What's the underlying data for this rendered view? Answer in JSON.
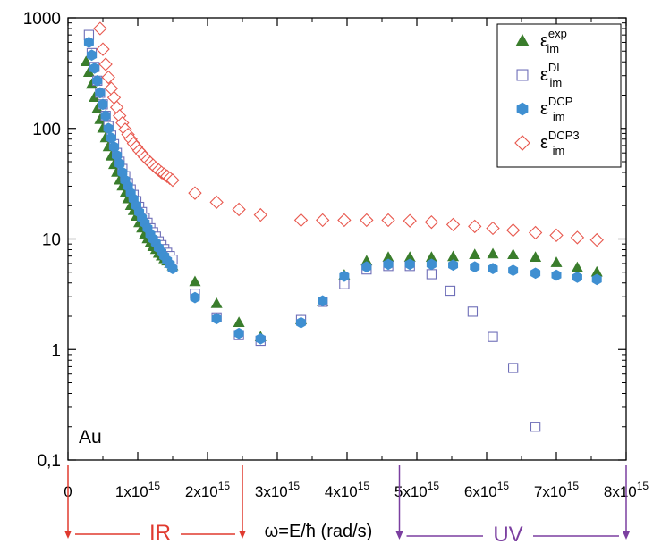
{
  "chart_data": {
    "type": "scatter",
    "title": "",
    "xlabel": "ω=E/ħ (rad/s)",
    "ylabel": "",
    "x_scale": "linear",
    "y_scale": "log",
    "xlim": [
      0,
      8000000000000000.0
    ],
    "ylim": [
      0.1,
      1000
    ],
    "grid": false,
    "legend_position": "top-right",
    "x_ticks": [
      {
        "v": 0,
        "base": "0",
        "sup": ""
      },
      {
        "v": 1000000000000000.0,
        "base": "1x10",
        "sup": "15"
      },
      {
        "v": 2000000000000000.0,
        "base": "2x10",
        "sup": "15"
      },
      {
        "v": 3000000000000000.0,
        "base": "3x10",
        "sup": "15"
      },
      {
        "v": 4000000000000000.0,
        "base": "4x10",
        "sup": "15"
      },
      {
        "v": 5000000000000000.0,
        "base": "5x10",
        "sup": "15"
      },
      {
        "v": 6000000000000000.0,
        "base": "6x10",
        "sup": "15"
      },
      {
        "v": 7000000000000000.0,
        "base": "7x10",
        "sup": "15"
      },
      {
        "v": 8000000000000000.0,
        "base": "8x10",
        "sup": "15"
      }
    ],
    "y_ticks": [
      {
        "v": 1000,
        "label": "1000"
      },
      {
        "v": 100,
        "label": "100"
      },
      {
        "v": 10,
        "label": "10"
      },
      {
        "v": 1,
        "label": "1"
      },
      {
        "v": 0.1,
        "label": "0,1"
      }
    ],
    "annotations": {
      "panel_label": "Au",
      "ir_label": "IR",
      "uv_label": "UV",
      "ir_range": [
        0,
        2500000000000000.0
      ],
      "uv_range": [
        4750000000000000.0,
        8000000000000000.0
      ]
    },
    "series": [
      {
        "name": "ε^exp_im",
        "base": "ε",
        "sup": "exp",
        "sub": "im",
        "marker": "triangle",
        "color": "#3a7d2c",
        "filled": true,
        "x": [
          260000000000000.0,
          300000000000000.0,
          340000000000000.0,
          380000000000000.0,
          420000000000000.0,
          460000000000000.0,
          500000000000000.0,
          540000000000000.0,
          580000000000000.0,
          620000000000000.0,
          660000000000000.0,
          700000000000000.0,
          740000000000000.0,
          780000000000000.0,
          820000000000000.0,
          860000000000000.0,
          900000000000000.0,
          940000000000000.0,
          980000000000000.0,
          1020000000000000.0,
          1060000000000000.0,
          1100000000000000.0,
          1140000000000000.0,
          1180000000000000.0,
          1220000000000000.0,
          1260000000000000.0,
          1300000000000000.0,
          1340000000000000.0,
          1380000000000000.0,
          1420000000000000.0,
          1460000000000000.0,
          1500000000000000.0,
          1820000000000000.0,
          2130000000000000.0,
          2450000000000000.0,
          2760000000000000.0,
          3340000000000000.0,
          3650000000000000.0,
          3960000000000000.0,
          4280000000000000.0,
          4590000000000000.0,
          4900000000000000.0,
          5210000000000000.0,
          5520000000000000.0,
          5830000000000000.0,
          6090000000000000.0,
          6380000000000000.0,
          6700000000000000.0,
          7000000000000000.0,
          7300000000000000.0,
          7580000000000000.0
        ],
        "y": [
          400,
          320,
          250,
          190,
          150,
          120,
          100,
          82,
          68,
          56,
          47,
          40,
          34,
          30,
          26,
          23,
          20,
          18,
          16,
          14,
          12.5,
          11,
          10,
          9.2,
          8.5,
          8,
          7.4,
          7,
          6.6,
          6.3,
          6,
          5.7,
          4.1,
          2.6,
          1.75,
          1.3,
          1.85,
          2.7,
          4.7,
          6.3,
          6.8,
          6.8,
          6.8,
          6.9,
          7.2,
          7.3,
          7.2,
          6.8,
          6.1,
          5.5,
          5.0
        ]
      },
      {
        "name": "ε^DL_im",
        "base": "ε",
        "sup": "DL",
        "sub": "im",
        "marker": "square",
        "color": "#6f6fb8",
        "filled": false,
        "x": [
          300000000000000.0,
          340000000000000.0,
          380000000000000.0,
          420000000000000.0,
          460000000000000.0,
          500000000000000.0,
          540000000000000.0,
          580000000000000.0,
          620000000000000.0,
          660000000000000.0,
          700000000000000.0,
          740000000000000.0,
          780000000000000.0,
          820000000000000.0,
          860000000000000.0,
          900000000000000.0,
          940000000000000.0,
          980000000000000.0,
          1020000000000000.0,
          1060000000000000.0,
          1100000000000000.0,
          1140000000000000.0,
          1180000000000000.0,
          1220000000000000.0,
          1260000000000000.0,
          1300000000000000.0,
          1340000000000000.0,
          1380000000000000.0,
          1420000000000000.0,
          1460000000000000.0,
          1500000000000000.0,
          1820000000000000.0,
          2130000000000000.0,
          2450000000000000.0,
          2760000000000000.0,
          3340000000000000.0,
          3650000000000000.0,
          3960000000000000.0,
          4280000000000000.0,
          4590000000000000.0,
          4900000000000000.0,
          5210000000000000.0,
          5480000000000000.0,
          5800000000000000.0,
          6090000000000000.0,
          6380000000000000.0,
          6700000000000000.0
        ],
        "y": [
          700,
          480,
          360,
          270,
          210,
          165,
          130,
          105,
          86,
          72,
          60,
          50,
          43,
          37,
          32,
          28,
          25,
          22,
          19.5,
          17.5,
          15.5,
          14,
          12.5,
          11.5,
          10.5,
          9.5,
          8.8,
          8.1,
          7.5,
          7,
          6.5,
          3.2,
          1.95,
          1.35,
          1.2,
          1.85,
          2.7,
          3.9,
          5.3,
          5.7,
          5.7,
          4.8,
          3.4,
          2.2,
          1.3,
          0.68,
          0.2
        ]
      },
      {
        "name": "ε^DCP_im",
        "base": "ε",
        "sup": "DCP",
        "sub": "im",
        "marker": "hexagon",
        "color": "#3f8fd1",
        "filled": true,
        "x": [
          300000000000000.0,
          340000000000000.0,
          380000000000000.0,
          420000000000000.0,
          460000000000000.0,
          500000000000000.0,
          540000000000000.0,
          580000000000000.0,
          620000000000000.0,
          660000000000000.0,
          700000000000000.0,
          740000000000000.0,
          780000000000000.0,
          820000000000000.0,
          860000000000000.0,
          900000000000000.0,
          940000000000000.0,
          980000000000000.0,
          1020000000000000.0,
          1060000000000000.0,
          1100000000000000.0,
          1140000000000000.0,
          1180000000000000.0,
          1220000000000000.0,
          1260000000000000.0,
          1300000000000000.0,
          1340000000000000.0,
          1380000000000000.0,
          1420000000000000.0,
          1460000000000000.0,
          1500000000000000.0,
          1820000000000000.0,
          2130000000000000.0,
          2450000000000000.0,
          2760000000000000.0,
          3340000000000000.0,
          3650000000000000.0,
          3960000000000000.0,
          4280000000000000.0,
          4590000000000000.0,
          4900000000000000.0,
          5210000000000000.0,
          5520000000000000.0,
          5830000000000000.0,
          6090000000000000.0,
          6380000000000000.0,
          6700000000000000.0,
          7000000000000000.0,
          7300000000000000.0,
          7580000000000000.0
        ],
        "y": [
          600,
          460,
          350,
          270,
          210,
          165,
          130,
          100,
          82,
          68,
          57,
          48,
          40,
          34,
          30,
          26,
          23,
          20,
          17.5,
          15.5,
          14,
          12.5,
          11,
          10,
          9.2,
          8.3,
          7.6,
          7,
          6.4,
          5.9,
          5.4,
          2.95,
          1.9,
          1.4,
          1.25,
          1.75,
          2.75,
          4.6,
          5.6,
          5.9,
          5.9,
          5.9,
          5.8,
          5.6,
          5.4,
          5.2,
          4.9,
          4.7,
          4.5,
          4.3
        ]
      },
      {
        "name": "ε^DCP3_im",
        "base": "ε",
        "sup": "DCP3",
        "sub": "im",
        "marker": "diamond",
        "color": "#e8584e",
        "filled": false,
        "x": [
          460000000000000.0,
          500000000000000.0,
          540000000000000.0,
          580000000000000.0,
          620000000000000.0,
          660000000000000.0,
          700000000000000.0,
          740000000000000.0,
          780000000000000.0,
          820000000000000.0,
          860000000000000.0,
          900000000000000.0,
          940000000000000.0,
          980000000000000.0,
          1020000000000000.0,
          1060000000000000.0,
          1100000000000000.0,
          1140000000000000.0,
          1180000000000000.0,
          1220000000000000.0,
          1260000000000000.0,
          1300000000000000.0,
          1340000000000000.0,
          1380000000000000.0,
          1420000000000000.0,
          1460000000000000.0,
          1500000000000000.0,
          1820000000000000.0,
          2130000000000000.0,
          2450000000000000.0,
          2760000000000000.0,
          3340000000000000.0,
          3650000000000000.0,
          3960000000000000.0,
          4280000000000000.0,
          4590000000000000.0,
          4900000000000000.0,
          5210000000000000.0,
          5520000000000000.0,
          5830000000000000.0,
          6090000000000000.0,
          6380000000000000.0,
          6700000000000000.0,
          7000000000000000.0,
          7300000000000000.0,
          7580000000000000.0
        ],
        "y": [
          800,
          520,
          380,
          290,
          230,
          190,
          155,
          130,
          112,
          98,
          88,
          80,
          73,
          68,
          63,
          59,
          55,
          52,
          49,
          46.5,
          44,
          42,
          40,
          38.5,
          37,
          35.5,
          34,
          26,
          21.5,
          18.5,
          16.5,
          14.8,
          14.8,
          14.8,
          14.8,
          14.8,
          14.6,
          14.2,
          13.5,
          13,
          12.5,
          12,
          11.4,
          10.8,
          10.3,
          9.8
        ]
      }
    ]
  }
}
